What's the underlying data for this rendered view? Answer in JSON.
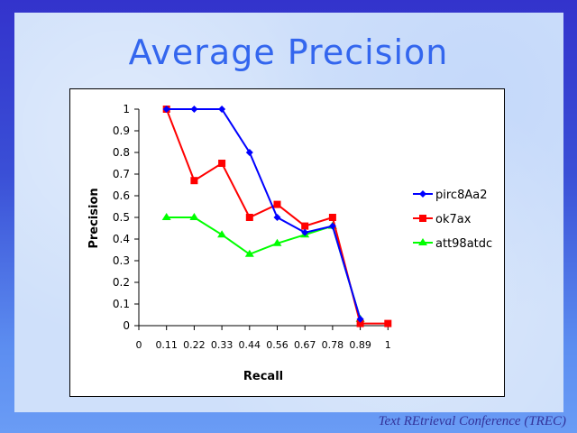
{
  "slide": {
    "title": "Average Precision",
    "footer": "Text REtrieval Conference (TREC)"
  },
  "chart_data": {
    "type": "line",
    "title": "Average Precision",
    "xlabel": "Recall",
    "ylabel": "Precision",
    "categories": [
      "0",
      "0.11",
      "0.22",
      "0.33",
      "0.44",
      "0.56",
      "0.67",
      "0.78",
      "0.89",
      "1"
    ],
    "ylim": [
      0,
      1
    ],
    "yticks": [
      "0",
      "0.1",
      "0.2",
      "0.3",
      "0.4",
      "0.5",
      "0.6",
      "0.7",
      "0.8",
      "0.9",
      "1"
    ],
    "grid": false,
    "legend_position": "right",
    "series": [
      {
        "name": "pirc8Aa2",
        "color": "#0000ff",
        "marker": "diamond",
        "values": [
          null,
          1.0,
          1.0,
          1.0,
          0.8,
          0.5,
          0.43,
          0.46,
          0.03,
          null
        ]
      },
      {
        "name": "ok7ax",
        "color": "#ff0000",
        "marker": "square",
        "values": [
          null,
          1.0,
          0.67,
          0.75,
          0.5,
          0.56,
          0.46,
          0.5,
          0.01,
          0.01
        ]
      },
      {
        "name": "att98atdc",
        "color": "#00ff00",
        "marker": "triangle",
        "values": [
          null,
          0.5,
          0.5,
          0.42,
          0.33,
          0.38,
          0.42,
          0.46,
          0.03,
          null
        ]
      }
    ]
  }
}
